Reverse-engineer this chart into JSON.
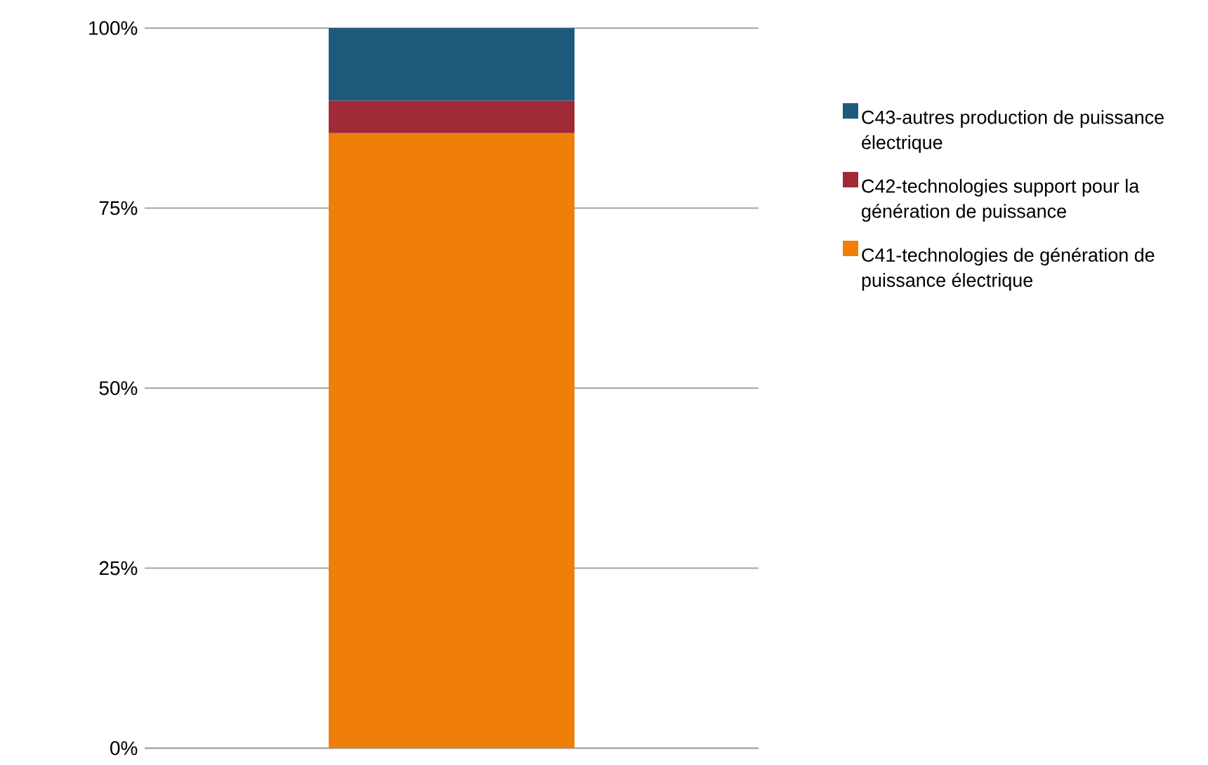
{
  "chart_data": {
    "type": "bar",
    "stacked": true,
    "categories": [
      null
    ],
    "series": [
      {
        "name": "C41-technologies de génération de puissance électrique",
        "color": "#f07f0a",
        "values": [
          85.4
        ]
      },
      {
        "name": "C42-technologies support pour la génération de puissance",
        "color": "#a02a36",
        "values": [
          4.5
        ]
      },
      {
        "name": "C43-autres production de puissance électrique",
        "color": "#1f5a7c",
        "values": [
          10.1
        ]
      }
    ],
    "ylim": [
      0,
      100
    ],
    "yticks": [
      {
        "value": 0,
        "label": "0%"
      },
      {
        "value": 25,
        "label": "25%"
      },
      {
        "value": 50,
        "label": "50%"
      },
      {
        "value": 75,
        "label": "75%"
      },
      {
        "value": 100,
        "label": "100%"
      }
    ],
    "grid": "y",
    "legend": "right"
  }
}
